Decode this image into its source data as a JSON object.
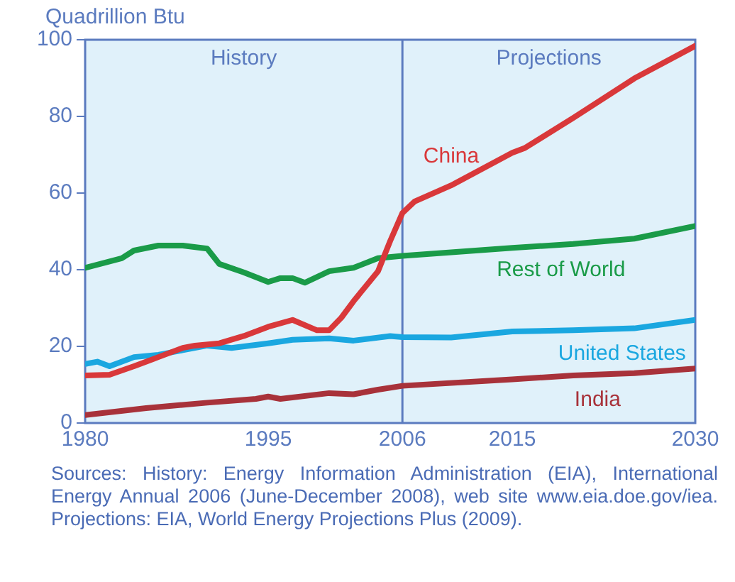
{
  "chart_data": {
    "type": "line",
    "ylabel": "Quadrillion Btu",
    "xlim": [
      1980,
      2030
    ],
    "xticks": [
      1980,
      1995,
      2006,
      2015,
      2030
    ],
    "ylim": [
      0,
      100
    ],
    "yticks": [
      0,
      20,
      40,
      60,
      80,
      100
    ],
    "grid": false,
    "legend": false,
    "marker": "none",
    "line_style": "solid",
    "bands": [
      {
        "axis": "x",
        "from": 1980,
        "to": 2006,
        "label": "History",
        "color": "#e0f1fa"
      },
      {
        "axis": "x",
        "from": 2006,
        "to": 2030,
        "label": "Projections",
        "color": "#e0f1fa"
      }
    ],
    "ref_lines": [
      {
        "axis": "x",
        "value": 2006,
        "color": "#5b7bbf"
      }
    ],
    "series": [
      {
        "name": "China",
        "color": "#d9383a",
        "x": [
          1980,
          1982,
          1984,
          1986,
          1988,
          1989,
          1991,
          1993,
          1995,
          1997,
          1999,
          2000,
          2001,
          2002,
          2004,
          2005,
          2006,
          2007,
          2010,
          2015,
          2016,
          2020,
          2025,
          2030
        ],
        "values": [
          12.4,
          12.6,
          14.8,
          17.2,
          19.6,
          20.2,
          20.8,
          22.7,
          25.1,
          26.9,
          24.2,
          24.2,
          27.5,
          31.8,
          39.6,
          47.5,
          54.8,
          57.8,
          62,
          70.5,
          71.7,
          79.6,
          89.9,
          98.4
        ]
      },
      {
        "name": "Rest of World",
        "color": "#1a9b48",
        "x": [
          1980,
          1983,
          1984,
          1986,
          1988,
          1990,
          1991,
          1993,
          1995,
          1996,
          1997,
          1998,
          2000,
          2002,
          2004,
          2006,
          2015,
          2020,
          2025,
          2030
        ],
        "values": [
          40.5,
          43,
          45,
          46.3,
          46.3,
          45.5,
          41.5,
          39.3,
          36.8,
          37.8,
          37.8,
          36.6,
          39.6,
          40.5,
          43,
          43.6,
          45.7,
          46.7,
          48.1,
          51.4
        ]
      },
      {
        "name": "United States",
        "color": "#1aa7e0",
        "x": [
          1980,
          1981,
          1982,
          1984,
          1986,
          1988,
          1990,
          1992,
          1995,
          1997,
          2000,
          2002,
          2005,
          2006,
          2010,
          2015,
          2020,
          2025,
          2030
        ],
        "values": [
          15.4,
          16,
          14.8,
          17.2,
          17.8,
          19,
          20.2,
          19.6,
          20.8,
          21.7,
          22.1,
          21.5,
          22.7,
          22.4,
          22.3,
          23.9,
          24.2,
          24.7,
          26.9
        ]
      },
      {
        "name": "India",
        "color": "#a8323a",
        "x": [
          1980,
          1985,
          1990,
          1994,
          1995,
          1996,
          2000,
          2002,
          2004,
          2006,
          2015,
          2020,
          2025,
          2030
        ],
        "values": [
          2.1,
          3.9,
          5.3,
          6.3,
          6.9,
          6.3,
          7.8,
          7.5,
          8.7,
          9.7,
          11.4,
          12.4,
          13,
          14.2
        ]
      }
    ],
    "annotations": [
      "Sources: History: Energy Information Administration (EIA), International Energy Annual 2006 (June-December 2008), web site www.eia.doe.gov/iea. Projections: EIA, World Energy Projections Plus (2009)."
    ]
  }
}
